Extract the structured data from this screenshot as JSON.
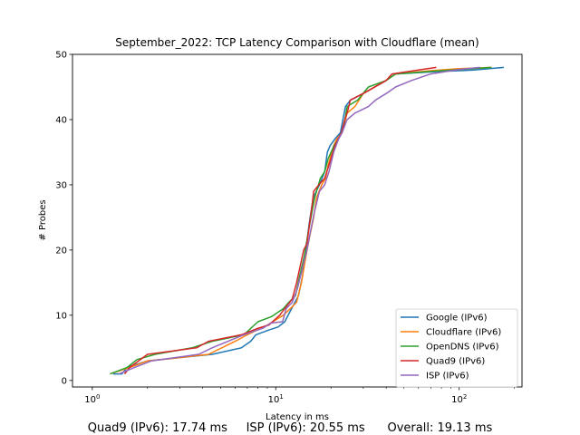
{
  "chart_data": {
    "type": "line",
    "title": "September_2022: TCP Latency Comparison with Cloudflare (mean)",
    "xlabel": "Latency in ms",
    "ylabel": "# Probes",
    "xscale": "log",
    "xlim": [
      0.78,
      220
    ],
    "ylim": [
      -1,
      50
    ],
    "x_ticks": [
      1,
      10,
      100
    ],
    "x_tick_labels": [
      "10^0",
      "10^1",
      "10^2"
    ],
    "y_ticks": [
      0,
      10,
      20,
      30,
      40,
      50
    ],
    "grid": false,
    "legend": "lower-right",
    "series": [
      {
        "name": "Google (IPv6)",
        "color": "#1f77b4",
        "points": [
          [
            1.3,
            1
          ],
          [
            1.45,
            1
          ],
          [
            1.55,
            2
          ],
          [
            2,
            3
          ],
          [
            3,
            3.5
          ],
          [
            4.5,
            4
          ],
          [
            6.5,
            5
          ],
          [
            7.3,
            6
          ],
          [
            7.8,
            7
          ],
          [
            9.3,
            7.8
          ],
          [
            10.3,
            8.2
          ],
          [
            11.2,
            9
          ],
          [
            12.2,
            11
          ],
          [
            13.3,
            13
          ],
          [
            14,
            16
          ],
          [
            14.6,
            20
          ],
          [
            15.2,
            24
          ],
          [
            16,
            28
          ],
          [
            17.3,
            30
          ],
          [
            18.5,
            32
          ],
          [
            19.1,
            35
          ],
          [
            19.8,
            36
          ],
          [
            21,
            37
          ],
          [
            22.5,
            38
          ],
          [
            24,
            42
          ],
          [
            25.5,
            43
          ],
          [
            30,
            44
          ],
          [
            40,
            46
          ],
          [
            45,
            47
          ],
          [
            70,
            47.3
          ],
          [
            120,
            47.6
          ],
          [
            175,
            48
          ]
        ]
      },
      {
        "name": "Cloudflare (IPv6)",
        "color": "#ff7f0e",
        "points": [
          [
            1.25,
            1
          ],
          [
            1.6,
            2
          ],
          [
            2,
            3
          ],
          [
            3,
            3.5
          ],
          [
            4.3,
            4
          ],
          [
            6,
            6
          ],
          [
            7,
            7
          ],
          [
            9,
            8.5
          ],
          [
            11,
            10
          ],
          [
            12,
            11
          ],
          [
            13,
            12
          ],
          [
            13.8,
            15
          ],
          [
            14.6,
            19
          ],
          [
            15.3,
            22
          ],
          [
            16.1,
            25
          ],
          [
            16.7,
            28
          ],
          [
            17.8,
            30
          ],
          [
            18.7,
            31
          ],
          [
            19.3,
            33
          ],
          [
            20.7,
            36
          ],
          [
            21.5,
            37
          ],
          [
            23,
            38
          ],
          [
            24.5,
            41
          ],
          [
            27,
            42
          ],
          [
            30,
            44
          ],
          [
            40,
            46
          ],
          [
            45,
            47
          ],
          [
            70,
            47.5
          ],
          [
            100,
            47.8
          ],
          [
            150,
            48
          ]
        ]
      },
      {
        "name": "OpenDNS (IPv6)",
        "color": "#2ca02c",
        "points": [
          [
            1.25,
            1
          ],
          [
            1.55,
            2
          ],
          [
            1.75,
            3.2
          ],
          [
            2.2,
            4
          ],
          [
            3.5,
            5
          ],
          [
            4.5,
            6
          ],
          [
            6.7,
            7
          ],
          [
            8,
            9
          ],
          [
            9.5,
            9.8
          ],
          [
            11,
            11
          ],
          [
            11.8,
            12
          ],
          [
            12.8,
            13
          ],
          [
            13.5,
            16
          ],
          [
            14.3,
            19
          ],
          [
            15.1,
            23
          ],
          [
            15.8,
            26
          ],
          [
            16.3,
            28
          ],
          [
            17.5,
            31
          ],
          [
            18.5,
            32
          ],
          [
            19.3,
            34
          ],
          [
            20.8,
            36
          ],
          [
            22,
            37
          ],
          [
            23.5,
            39
          ],
          [
            24.5,
            42
          ],
          [
            28,
            43
          ],
          [
            32,
            45
          ],
          [
            40,
            46
          ],
          [
            45,
            47
          ],
          [
            80,
            47.5
          ],
          [
            150,
            48
          ]
        ]
      },
      {
        "name": "Quad9 (IPv6)",
        "color": "#d62728",
        "points": [
          [
            1.5,
            1
          ],
          [
            1.6,
            2
          ],
          [
            2,
            4
          ],
          [
            3.7,
            5
          ],
          [
            4.3,
            6
          ],
          [
            6.5,
            7
          ],
          [
            8,
            8
          ],
          [
            9.2,
            8.5
          ],
          [
            10.5,
            10
          ],
          [
            12.3,
            12.5
          ],
          [
            13,
            15
          ],
          [
            14.2,
            20
          ],
          [
            14.8,
            21
          ],
          [
            15.3,
            24
          ],
          [
            15.8,
            27
          ],
          [
            16.1,
            29
          ],
          [
            17.2,
            30
          ],
          [
            18.5,
            31
          ],
          [
            19.5,
            33
          ],
          [
            21,
            36
          ],
          [
            22.8,
            38
          ],
          [
            23.8,
            40
          ],
          [
            24.5,
            41
          ],
          [
            25.5,
            43
          ],
          [
            30,
            44
          ],
          [
            40,
            46
          ],
          [
            43,
            47
          ],
          [
            60,
            47.6
          ],
          [
            75,
            48
          ]
        ]
      },
      {
        "name": "ISP (IPv6)",
        "color": "#9467bd",
        "points": [
          [
            1.4,
            1
          ],
          [
            1.7,
            2
          ],
          [
            2.1,
            3
          ],
          [
            3.8,
            4
          ],
          [
            4.5,
            5
          ],
          [
            6.7,
            7
          ],
          [
            8.5,
            8
          ],
          [
            9.4,
            8.8
          ],
          [
            10.9,
            9
          ],
          [
            11.4,
            11
          ],
          [
            12.3,
            12
          ],
          [
            13.1,
            14
          ],
          [
            14.2,
            18
          ],
          [
            14.8,
            20
          ],
          [
            15.5,
            23
          ],
          [
            16.3,
            26
          ],
          [
            17.3,
            29
          ],
          [
            18.5,
            30
          ],
          [
            19.5,
            32
          ],
          [
            20.7,
            35
          ],
          [
            22,
            37
          ],
          [
            23,
            38
          ],
          [
            24.5,
            40
          ],
          [
            27,
            41
          ],
          [
            32,
            42
          ],
          [
            35,
            43
          ],
          [
            40,
            44
          ],
          [
            45,
            45
          ],
          [
            55,
            46
          ],
          [
            70,
            47
          ],
          [
            100,
            47.7
          ],
          [
            130,
            48
          ]
        ]
      }
    ]
  },
  "footer": {
    "text": "Quad9 (IPv6): 17.74 ms     ISP (IPv6): 20.55 ms      Overall: 19.13 ms"
  }
}
